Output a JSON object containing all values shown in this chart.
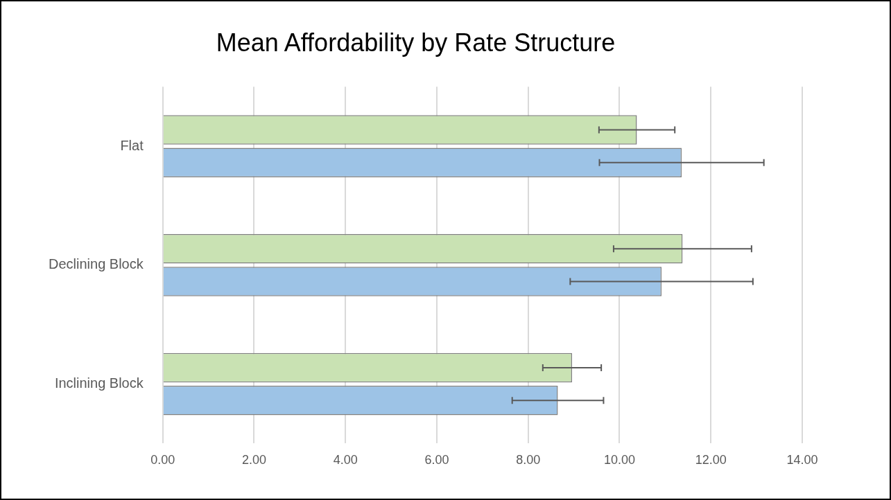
{
  "chart_data": {
    "type": "bar",
    "orientation": "horizontal",
    "title": "Mean Affordability by Rate Structure",
    "categories": [
      "Flat",
      "Declining Block",
      "Inclining Block"
    ],
    "series": [
      {
        "color": "#c9e2b3",
        "values": [
          10.38,
          11.38,
          8.96
        ],
        "errors": [
          0.83,
          1.51,
          0.64
        ]
      },
      {
        "color": "#9dc3e6",
        "values": [
          11.36,
          10.92,
          8.65
        ],
        "errors": [
          1.8,
          2.0,
          1.0
        ]
      }
    ],
    "xlim": [
      0,
      14
    ],
    "xticks": [
      {
        "value": 0,
        "label": "0.00"
      },
      {
        "value": 2,
        "label": "2.00"
      },
      {
        "value": 4,
        "label": "4.00"
      },
      {
        "value": 6,
        "label": "6.00"
      },
      {
        "value": 8,
        "label": "8.00"
      },
      {
        "value": 10,
        "label": "10.00"
      },
      {
        "value": 12,
        "label": "12.00"
      },
      {
        "value": 14,
        "label": "14.00"
      }
    ],
    "grid": "x",
    "legend": false
  }
}
